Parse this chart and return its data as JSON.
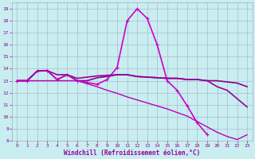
{
  "xlabel": "Windchill (Refroidissement éolien,°C)",
  "xlim": [
    -0.5,
    23.5
  ],
  "ylim": [
    8,
    19.5
  ],
  "yticks": [
    8,
    9,
    10,
    11,
    12,
    13,
    14,
    15,
    16,
    17,
    18,
    19
  ],
  "xticks": [
    0,
    1,
    2,
    3,
    4,
    5,
    6,
    7,
    8,
    9,
    10,
    11,
    12,
    13,
    14,
    15,
    16,
    17,
    18,
    19,
    20,
    21,
    22,
    23
  ],
  "bg_color": "#c8eef0",
  "grid_color": "#aaaacc",
  "line_color": "#990099",
  "line_defs": [
    {
      "x": [
        0,
        1,
        2,
        3,
        4,
        5,
        6,
        7,
        8,
        9,
        10,
        11,
        12,
        13,
        14,
        15,
        16,
        17,
        18,
        19,
        20,
        21,
        22,
        23
      ],
      "y": [
        13,
        13,
        13.8,
        13.85,
        13.1,
        13.5,
        13.0,
        13.0,
        13.25,
        13.35,
        13.5,
        13.5,
        13.35,
        13.3,
        13.25,
        13.2,
        13.2,
        13.1,
        13.1,
        13.0,
        13.0,
        12.9,
        12.8,
        12.5
      ],
      "marker": false,
      "lw": 1.2,
      "color": "#880088"
    },
    {
      "x": [
        0,
        1,
        2,
        3,
        4,
        5,
        6,
        7,
        8,
        9,
        10,
        11,
        12,
        13,
        14,
        15,
        16,
        17,
        18,
        19
      ],
      "y": [
        13,
        13,
        13.8,
        13.85,
        13.1,
        13.5,
        13.0,
        12.85,
        12.7,
        13.1,
        14.1,
        18.0,
        19.0,
        18.2,
        16.0,
        13.0,
        12.2,
        10.9,
        9.5,
        8.5
      ],
      "marker": true,
      "lw": 1.2,
      "color": "#cc00cc",
      "ms": 3.5
    },
    {
      "x": [
        0,
        1,
        2,
        3,
        4,
        5,
        6,
        7,
        8,
        9,
        10,
        11,
        12,
        13,
        14,
        15,
        16,
        17,
        18,
        19,
        20,
        21,
        22,
        23
      ],
      "y": [
        13,
        13,
        13.8,
        13.85,
        13.5,
        13.5,
        13.2,
        13.3,
        13.4,
        13.45,
        13.5,
        13.5,
        13.35,
        13.3,
        13.25,
        13.2,
        13.2,
        13.1,
        13.1,
        13.0,
        12.5,
        12.2,
        11.5,
        10.8
      ],
      "marker": false,
      "lw": 1.2,
      "color": "#990099"
    },
    {
      "x": [
        0,
        1,
        2,
        3,
        4,
        5,
        6,
        7,
        8,
        9,
        10,
        11,
        12,
        13,
        14,
        15,
        16,
        17,
        18,
        19,
        20,
        21,
        22,
        23
      ],
      "y": [
        13,
        13,
        13,
        13,
        13,
        13,
        13,
        12.75,
        12.5,
        12.2,
        11.95,
        11.65,
        11.4,
        11.15,
        10.9,
        10.65,
        10.35,
        10.05,
        9.6,
        9.15,
        8.7,
        8.35,
        8.1,
        8.5
      ],
      "marker": false,
      "lw": 1.0,
      "color": "#bb00bb"
    }
  ]
}
